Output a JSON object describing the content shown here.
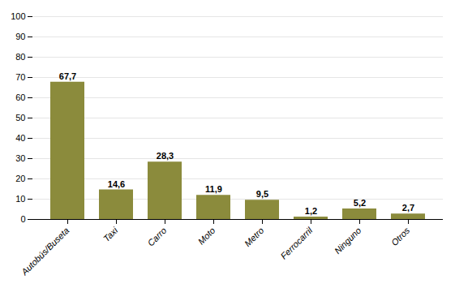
{
  "chart_data": {
    "type": "bar",
    "categories": [
      "Autobús/Buseta",
      "Taxi",
      "Carro",
      "Moto",
      "Metro",
      "Ferrocarril",
      "Ninguno",
      "Otros"
    ],
    "values": [
      67.7,
      14.6,
      28.3,
      11.9,
      9.5,
      1.2,
      5.2,
      2.7
    ],
    "value_labels": [
      "67,7",
      "14,6",
      "28,3",
      "11,9",
      "9,5",
      "1,2",
      "5,2",
      "2,7"
    ],
    "data_labels": true,
    "color": "#8B8B3C",
    "ylim": [
      0,
      100
    ],
    "yticks": [
      0,
      10,
      20,
      30,
      40,
      50,
      60,
      70,
      80,
      90,
      100
    ],
    "grid": true
  }
}
